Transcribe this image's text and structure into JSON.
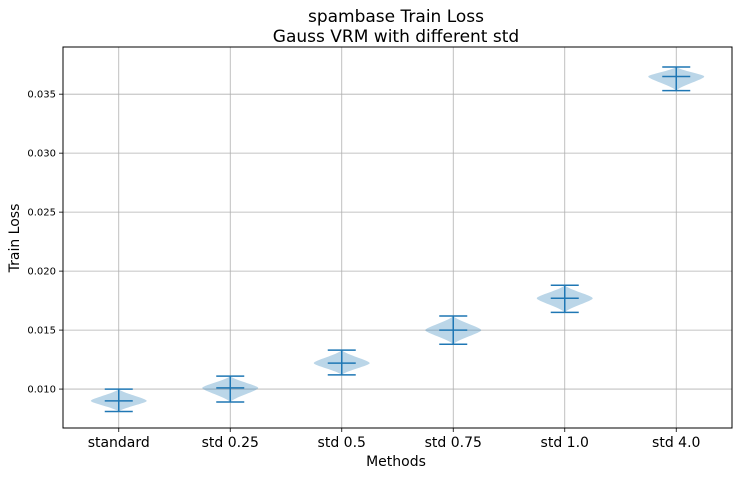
{
  "chart_data": {
    "type": "violin",
    "title": "spambase Train Loss",
    "subtitle": "Gauss VRM with different std",
    "xlabel": "Methods",
    "ylabel": "Train Loss",
    "categories": [
      "standard",
      "std 0.25",
      "std 0.5",
      "std 0.75",
      "std 1.0",
      "std 4.0"
    ],
    "ylim": [
      0.0067,
      0.039
    ],
    "yticks": [
      0.01,
      0.015,
      0.02,
      0.025,
      0.03,
      0.035
    ],
    "ytick_labels": [
      "0.010",
      "0.015",
      "0.020",
      "0.025",
      "0.030",
      "0.035"
    ],
    "grid": true,
    "series": [
      {
        "min": [
          0.0081,
          0.0089,
          0.0112,
          0.0138,
          0.0165,
          0.0353
        ],
        "median": [
          0.009,
          0.0101,
          0.0122,
          0.015,
          0.0177,
          0.0365
        ],
        "max": [
          0.01,
          0.0111,
          0.0133,
          0.0162,
          0.0188,
          0.0373
        ]
      }
    ],
    "colors": {
      "body": "#1f77b4",
      "body_opacity": 0.3,
      "lines": "#1f77b4",
      "grid": "#b0b0b0"
    }
  }
}
